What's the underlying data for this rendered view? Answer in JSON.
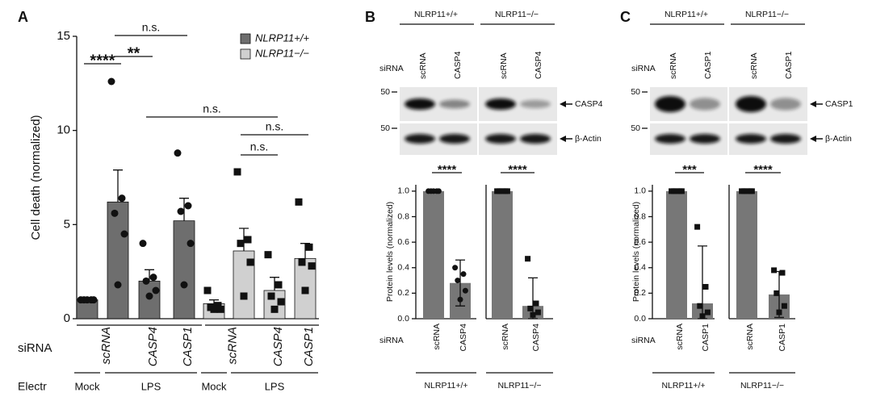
{
  "chart_data": [
    {
      "type": "bar",
      "panel": "A",
      "ylabel": "Cell death (normalized)",
      "ylim": [
        0,
        15
      ],
      "yticks": [
        0,
        5,
        10,
        15
      ],
      "legend": "top-right",
      "series": [
        {
          "name": "NLRP11+/+",
          "color": "#6e6e6e",
          "marker": "circle",
          "values": [
            1.0,
            6.2,
            2.0,
            5.2
          ],
          "errors": [
            0.05,
            1.7,
            0.6,
            1.2
          ],
          "points": [
            [
              1,
              1,
              1,
              1,
              1
            ],
            [
              12.6,
              6.4,
              5.6,
              4.5,
              1.8
            ],
            [
              4.0,
              2.2,
              2.0,
              1.5,
              1.2
            ],
            [
              8.8,
              6.0,
              5.7,
              4.0,
              1.8
            ]
          ]
        },
        {
          "name": "NLRP11−/−",
          "color": "#d0d0d0",
          "marker": "square",
          "values": [
            0.8,
            3.6,
            1.5,
            3.2
          ],
          "errors": [
            0.2,
            1.2,
            0.7,
            0.8
          ],
          "points": [
            [
              1.5,
              0.7,
              0.6,
              0.5,
              0.5
            ],
            [
              7.8,
              4.2,
              4.0,
              3.0,
              1.2
            ],
            [
              3.4,
              1.8,
              1.2,
              0.9,
              0.5
            ],
            [
              6.2,
              3.8,
              3.0,
              2.8,
              1.5
            ]
          ]
        }
      ],
      "annotations": [
        {
          "label": "****",
          "between": [
            0,
            1
          ]
        },
        {
          "label": "**",
          "between": [
            1,
            2
          ]
        },
        {
          "label": "n.s.",
          "between": [
            1,
            3
          ]
        },
        {
          "label": "n.s.",
          "between": [
            2,
            6
          ]
        },
        {
          "label": "n.s.",
          "between": [
            5,
            7
          ]
        },
        {
          "label": "n.s.",
          "between": [
            5,
            6
          ]
        }
      ],
      "row_labels": [
        "siRNA",
        "Electr"
      ],
      "sirna_labels": [
        {
          "label": "scRNA",
          "bars": [
            0,
            1
          ]
        },
        {
          "label": "CASP4",
          "bars": [
            2,
            2
          ]
        },
        {
          "label": "CASP1",
          "bars": [
            3,
            3
          ]
        },
        {
          "label": "scRNA",
          "bars": [
            4,
            5
          ]
        },
        {
          "label": "CASP4",
          "bars": [
            6,
            6
          ]
        },
        {
          "label": "CASP1",
          "bars": [
            7,
            7
          ]
        }
      ],
      "electr_labels": [
        {
          "label": "Mock",
          "bars": [
            0,
            0
          ]
        },
        {
          "label": "LPS",
          "bars": [
            1,
            3
          ]
        },
        {
          "label": "Mock",
          "bars": [
            4,
            4
          ]
        },
        {
          "label": "LPS",
          "bars": [
            5,
            7
          ]
        }
      ]
    },
    {
      "type": "bar",
      "ylabel": "Protein levels (normalized)",
      "row_label": "siRNA",
      "xlabel": "NLRP11+/+",
      "ylim": [
        0,
        1.05
      ],
      "yticks": [
        {
          "value": 0,
          "label": "0.0"
        },
        {
          "value": 0.2,
          "label": "0.2"
        },
        {
          "value": 0.4,
          "label": "0.4"
        },
        {
          "value": 0.6,
          "label": "0.6"
        },
        {
          "value": 0.8,
          "label": "0.8"
        },
        {
          "value": 1,
          "label": "1.0"
        }
      ],
      "categories": [
        "scRNA",
        "CASP4"
      ],
      "series": [
        {
          "color": "#777777",
          "marker": "circle",
          "values": [
            1.0,
            0.28
          ],
          "errors": [
            0.005,
            0.18
          ],
          "points": [
            [
              1,
              1,
              1,
              1,
              1
            ],
            [
              0.4,
              0.35,
              0.3,
              0.22,
              0.15
            ]
          ]
        }
      ],
      "annotations": [
        {
          "label": "****",
          "between": [
            0,
            1
          ]
        }
      ]
    },
    {
      "type": "bar",
      "xlabel": "NLRP11−/−",
      "ylim": [
        0,
        1.05
      ],
      "categories": [
        "scRNA",
        "CASP4"
      ],
      "series": [
        {
          "color": "#777777",
          "marker": "square",
          "values": [
            1.0,
            0.1
          ],
          "errors": [
            0.005,
            0.22
          ],
          "points": [
            [
              1,
              1,
              1,
              1,
              1
            ],
            [
              0.47,
              0.12,
              0.08,
              0.05,
              0.03
            ]
          ]
        }
      ],
      "annotations": [
        {
          "label": "****",
          "between": [
            0,
            1
          ]
        }
      ]
    },
    {
      "type": "bar",
      "ylabel": "Protein levels (normalized)",
      "row_label": "siRNA",
      "xlabel": "NLRP11+/+",
      "ylim": [
        0,
        1.05
      ],
      "yticks": [
        {
          "value": 0,
          "label": "0.0"
        },
        {
          "value": 0.2,
          "label": "0.2"
        },
        {
          "value": 0.4,
          "label": "0.4"
        },
        {
          "value": 0.6,
          "label": "0.6"
        },
        {
          "value": 0.8,
          "label": "0.8"
        },
        {
          "value": 1,
          "label": "1.0"
        }
      ],
      "categories": [
        "scRNA",
        "CASP1"
      ],
      "series": [
        {
          "color": "#777777",
          "marker": "square",
          "values": [
            1.0,
            0.12
          ],
          "errors": [
            0.005,
            0.45
          ],
          "points": [
            [
              1,
              1,
              1,
              1,
              1
            ],
            [
              0.72,
              0.25,
              0.1,
              0.05,
              0.02
            ]
          ]
        }
      ],
      "annotations": [
        {
          "label": "***",
          "between": [
            0,
            1
          ]
        }
      ]
    },
    {
      "type": "bar",
      "xlabel": "NLRP11−/−",
      "ylim": [
        0,
        1.05
      ],
      "categories": [
        "scRNA",
        "CASP1"
      ],
      "series": [
        {
          "color": "#777777",
          "marker": "square",
          "values": [
            1.0,
            0.19
          ],
          "errors": [
            0.005,
            0.18
          ],
          "points": [
            [
              1,
              1,
              1,
              1,
              1
            ],
            [
              0.38,
              0.36,
              0.2,
              0.1,
              0.05
            ]
          ]
        }
      ],
      "annotations": [
        {
          "label": "****",
          "between": [
            0,
            1
          ]
        }
      ]
    }
  ],
  "blots": [
    {
      "panel": "B",
      "genotypes": [
        "NLRP11+/+",
        "NLRP11−/−"
      ],
      "row_label": "siRNA",
      "lanes": [
        "scRNA",
        "CASP4",
        "scRNA",
        "CASP4"
      ],
      "markers": [
        "50",
        "50"
      ],
      "bands": [
        "CASP4",
        "β-Actin"
      ]
    },
    {
      "panel": "C",
      "genotypes": [
        "NLRP11+/+",
        "NLRP11−/−"
      ],
      "row_label": "siRNA",
      "lanes": [
        "scRNA",
        "CASP1",
        "scRNA",
        "CASP1"
      ],
      "markers": [
        "50",
        "50"
      ],
      "bands": [
        "CASP1",
        "β-Actin"
      ]
    }
  ]
}
